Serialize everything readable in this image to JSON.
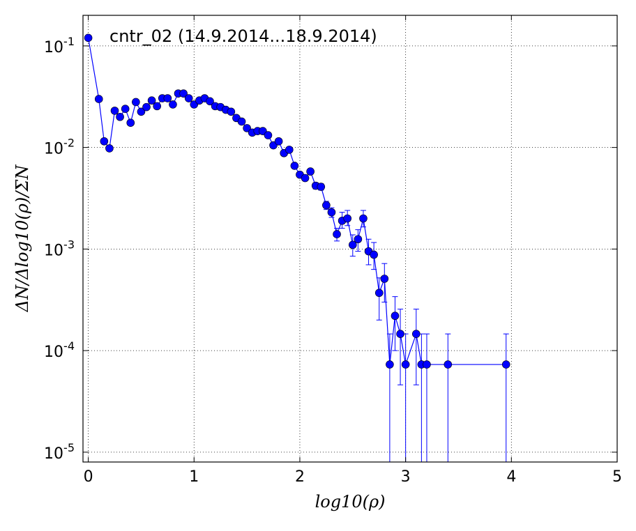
{
  "chart_data": {
    "type": "scatter",
    "title": "",
    "annotation": "cntr_02 (14.9.2014...18.9.2014)",
    "xlabel": "log10(ρ)",
    "ylabel": "ΔN/Δlog10(ρ)/ΣN",
    "xscale": "linear",
    "yscale": "log",
    "xlim": [
      -0.05,
      5
    ],
    "ylim": [
      8e-06,
      0.2
    ],
    "xticks": [
      0,
      1,
      2,
      3,
      4,
      5
    ],
    "xtick_labels": [
      "0",
      "1",
      "2",
      "3",
      "4",
      "5"
    ],
    "ytick_exponents": [
      -1,
      -2,
      -3,
      -4,
      -5
    ],
    "grid": true,
    "series_color": "#0000ff",
    "series": [
      {
        "x": [
          0.0,
          0.1,
          0.15,
          0.2,
          0.25,
          0.3,
          0.35,
          0.4,
          0.45,
          0.5,
          0.55,
          0.6,
          0.65,
          0.7,
          0.75,
          0.8,
          0.85,
          0.9,
          0.95,
          1.0,
          1.05,
          1.1,
          1.15,
          1.2,
          1.25,
          1.3,
          1.35,
          1.4,
          1.45,
          1.5,
          1.55,
          1.6,
          1.65,
          1.7,
          1.75,
          1.8,
          1.85,
          1.9,
          1.95,
          2.0,
          2.05,
          2.1,
          2.15,
          2.2,
          2.25,
          2.3,
          2.35,
          2.4,
          2.45,
          2.5,
          2.55,
          2.6,
          2.65,
          2.7,
          2.75,
          2.8,
          2.85,
          2.9,
          2.95,
          3.0,
          3.1,
          3.15,
          3.2,
          3.4,
          3.95
        ],
        "y": [
          0.12,
          0.03,
          0.0115,
          0.0098,
          0.023,
          0.02,
          0.024,
          0.0175,
          0.028,
          0.0225,
          0.025,
          0.029,
          0.0255,
          0.0305,
          0.0305,
          0.0265,
          0.034,
          0.034,
          0.0305,
          0.0265,
          0.029,
          0.0305,
          0.0285,
          0.0255,
          0.025,
          0.0235,
          0.0225,
          0.0195,
          0.018,
          0.0155,
          0.014,
          0.0145,
          0.0145,
          0.0132,
          0.0105,
          0.0115,
          0.0088,
          0.0095,
          0.0066,
          0.0054,
          0.005,
          0.0058,
          0.0042,
          0.0041,
          0.0027,
          0.0023,
          0.0014,
          0.0019,
          0.002,
          0.0011,
          0.00125,
          0.002,
          0.00095,
          0.00088,
          0.00037,
          0.00051,
          7.3e-05,
          0.00022,
          0.000146,
          7.3e-05,
          0.000146,
          7.3e-05,
          7.3e-05,
          7.3e-05,
          7.3e-05
        ],
        "yerr_low": [
          0,
          0,
          0,
          0,
          0,
          0,
          0,
          0,
          0,
          0,
          0,
          0,
          0,
          0,
          0,
          0,
          0,
          0,
          0,
          0,
          0,
          0,
          0,
          0,
          0,
          0,
          0,
          0,
          0,
          0,
          0,
          0,
          0,
          0,
          0,
          0,
          0,
          0,
          0,
          0,
          0,
          0,
          0.0003,
          0.0003,
          0.00025,
          0.00025,
          0.0002,
          0.0003,
          0.0003,
          0.00025,
          0.0003,
          0.00035,
          0.00025,
          0.00025,
          0.00017,
          0.00021,
          7.3e-05,
          0.00012,
          0.0001,
          7.3e-05,
          0.0001,
          7.3e-05,
          7.3e-05,
          7.3e-05,
          7.3e-05
        ],
        "yerr_high": [
          0,
          0,
          0,
          0,
          0,
          0,
          0,
          0,
          0,
          0,
          0,
          0,
          0,
          0,
          0,
          0,
          0,
          0,
          0,
          0,
          0,
          0,
          0,
          0,
          0,
          0,
          0,
          0,
          0,
          0,
          0,
          0,
          0,
          0,
          0,
          0,
          0,
          0,
          0,
          0,
          0,
          0,
          0.0003,
          0.0003,
          0.00025,
          0.00025,
          0.0002,
          0.0004,
          0.0004,
          0.00028,
          0.0003,
          0.0004,
          0.0003,
          0.00028,
          0.00015,
          0.00021,
          7.3e-05,
          0.00012,
          0.00011,
          7.3e-05,
          0.00011,
          7.3e-05,
          7.3e-05,
          7.3e-05,
          7.3e-05
        ]
      }
    ]
  }
}
